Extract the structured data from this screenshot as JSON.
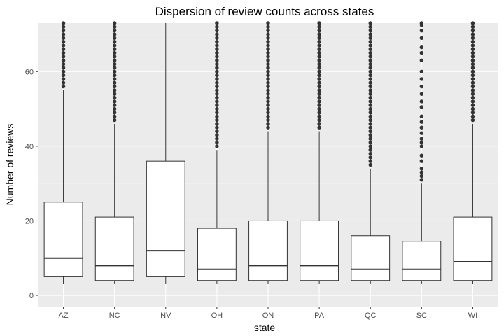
{
  "chart_data": {
    "type": "box",
    "title": "Dispersion of review counts across states",
    "xlabel": "state",
    "ylabel": "Number of reviews",
    "ylim": [
      -3,
      73
    ],
    "yticks": [
      0,
      20,
      40,
      60
    ],
    "grid": true,
    "categories": [
      "AZ",
      "NC",
      "NV",
      "OH",
      "ON",
      "PA",
      "QC",
      "SC",
      "WI"
    ],
    "boxes": [
      {
        "state": "AZ",
        "lower_whisker": 3,
        "q1": 5,
        "median": 10,
        "q3": 25,
        "upper_whisker": 55,
        "outliers_from": 56,
        "outliers_to": 73
      },
      {
        "state": "NC",
        "lower_whisker": 3,
        "q1": 4,
        "median": 8,
        "q3": 21,
        "upper_whisker": 46,
        "outliers_from": 47,
        "outliers_to": 73
      },
      {
        "state": "NV",
        "lower_whisker": 3,
        "q1": 5,
        "median": 12,
        "q3": 36,
        "upper_whisker": 73,
        "outliers_from": null,
        "outliers_to": null
      },
      {
        "state": "OH",
        "lower_whisker": 3,
        "q1": 4,
        "median": 7,
        "q3": 18,
        "upper_whisker": 39,
        "outliers_from": 40,
        "outliers_to": 73
      },
      {
        "state": "ON",
        "lower_whisker": 3,
        "q1": 4,
        "median": 8,
        "q3": 20,
        "upper_whisker": 44,
        "outliers_from": 45,
        "outliers_to": 73
      },
      {
        "state": "PA",
        "lower_whisker": 3,
        "q1": 4,
        "median": 8,
        "q3": 20,
        "upper_whisker": 44,
        "outliers_from": 45,
        "outliers_to": 73
      },
      {
        "state": "QC",
        "lower_whisker": 3,
        "q1": 4,
        "median": 7,
        "q3": 16,
        "upper_whisker": 34,
        "outliers_from": 35,
        "outliers_to": 73
      },
      {
        "state": "SC",
        "lower_whisker": 3,
        "q1": 4,
        "median": 7,
        "q3": 14.5,
        "upper_whisker": 30,
        "outliers": [
          31,
          32,
          33,
          34,
          36,
          37.5,
          40,
          41,
          42,
          43.5,
          45,
          46.5,
          48,
          50.5,
          52,
          54,
          56,
          58,
          60,
          63,
          65,
          66.5,
          69,
          71,
          72.5,
          73
        ]
      },
      {
        "state": "WI",
        "lower_whisker": 3,
        "q1": 4,
        "median": 9,
        "q3": 21,
        "upper_whisker": 46,
        "outliers_from": 47,
        "outliers_to": 73
      }
    ],
    "colors": {
      "panel_background": "#ebebeb",
      "grid_major": "#ffffff",
      "grid_minor": "#f5f5f5",
      "box_fill": "#ffffff",
      "box_stroke": "#333333",
      "outlier": "#333333"
    }
  }
}
